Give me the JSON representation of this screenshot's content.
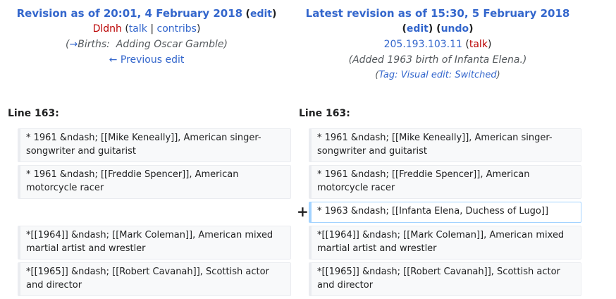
{
  "left_header": {
    "title": "Revision as of 20:01, 4 February 2018",
    "edit_label": "edit",
    "user": "Dldnh",
    "talk_label": "talk",
    "contribs_label": "contribs",
    "summary_arrow": "→",
    "summary_section": "Births:",
    "summary_text": "Adding Oscar Gamble",
    "prev_edit_label": "← Previous edit"
  },
  "right_header": {
    "title": "Latest revision as of 15:30, 5 February 2018",
    "edit_label": "edit",
    "undo_label": "undo",
    "user_ip": "205.193.103.11",
    "talk_label": "talk",
    "summary": "Added 1963 birth of Infanta Elena.",
    "tag_label": "Tag:",
    "tag_value": "Visual edit: Switched"
  },
  "diff": {
    "left_line_label": "Line 163:",
    "right_line_label": "Line 163:",
    "added_marker": "+",
    "left_cells": [
      "* 1961   &ndash; [[Mike Keneally]], American singer-songwriter and guitarist",
      "* 1961   &ndash; [[Freddie Spencer]], American motorcycle racer",
      "*[[1964]] &ndash; [[Mark Coleman]], American mixed martial artist and wrestler",
      "*[[1965]] &ndash; [[Robert Cavanah]], Scottish actor and director"
    ],
    "right_cells": [
      "* 1961   &ndash; [[Mike Keneally]], American singer-songwriter and guitarist",
      "* 1961   &ndash; [[Freddie Spencer]], American motorcycle racer",
      "* 1963   &ndash; [[Infanta Elena, Duchess of Lugo]]",
      "*[[1964]] &ndash; [[Mark Coleman]], American mixed martial artist and wrestler",
      "*[[1965]] &ndash; [[Robert Cavanah]], Scottish actor and director"
    ]
  }
}
